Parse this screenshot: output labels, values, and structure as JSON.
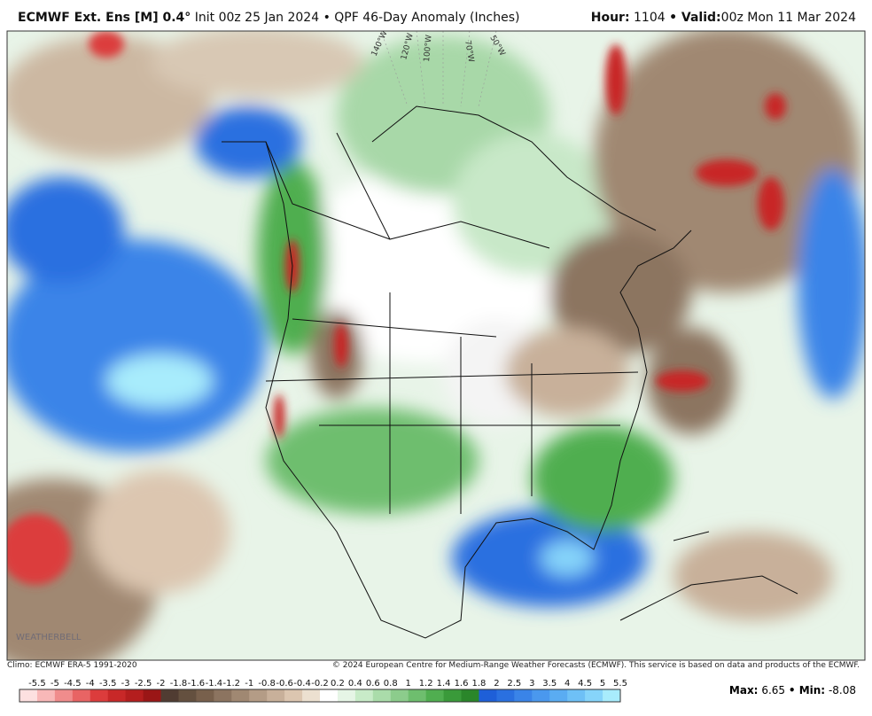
{
  "header": {
    "model": "ECMWF Ext. Ens [M] 0.4°",
    "init": "Init 00z 25 Jan 2024",
    "product": "• QPF 46-Day Anomaly (Inches)",
    "hour_label": "Hour:",
    "hour": "1104",
    "valid_label": "• Valid:",
    "valid": "00z Mon 11 Mar 2024"
  },
  "map": {
    "lon_labels": [
      "140°W",
      "120°W",
      "100°W",
      "70°W",
      "50°W"
    ],
    "watermark": "WEATHERBELL"
  },
  "colorbar": {
    "ticks": [
      -5.5,
      -5,
      -4.5,
      -4,
      -3.5,
      -3,
      -2.5,
      -2,
      -1.8,
      -1.6,
      -1.4,
      -1.2,
      -1,
      -0.8,
      -0.6,
      -0.4,
      -0.2,
      0.2,
      0.4,
      0.6,
      0.8,
      1,
      1.2,
      1.4,
      1.6,
      1.8,
      2,
      2.5,
      3,
      3.5,
      4,
      4.5,
      5,
      5.5
    ],
    "colors": [
      "#fde0e0",
      "#f8b8b8",
      "#f08c8c",
      "#e86464",
      "#dc3c3c",
      "#c82828",
      "#b41e1e",
      "#9a1616",
      "#503c32",
      "#64503f",
      "#78604c",
      "#8c7460",
      "#a08872",
      "#b49c86",
      "#c8b09a",
      "#dcc6b0",
      "#ece0d0",
      "#ffffff",
      "#e6f5e6",
      "#c8ebc8",
      "#aadcaa",
      "#8ccc8c",
      "#6ebe6e",
      "#50ae50",
      "#3a9a3a",
      "#2a862a",
      "#1e5fd8",
      "#2a70e0",
      "#3a84e8",
      "#4a98ee",
      "#5aacf2",
      "#6ec0f6",
      "#86d4fa",
      "#a8ecfc"
    ]
  },
  "footer": {
    "climo": "Climo: ECMWF ERA-5 1991-2020",
    "copyright": "© 2024 European Centre for Medium-Range Weather Forecasts (ECMWF). This service is based on data and products of the ECMWF.",
    "max_label": "Max:",
    "max": 6.65,
    "min_label": "• Min:",
    "min": -8.08
  }
}
